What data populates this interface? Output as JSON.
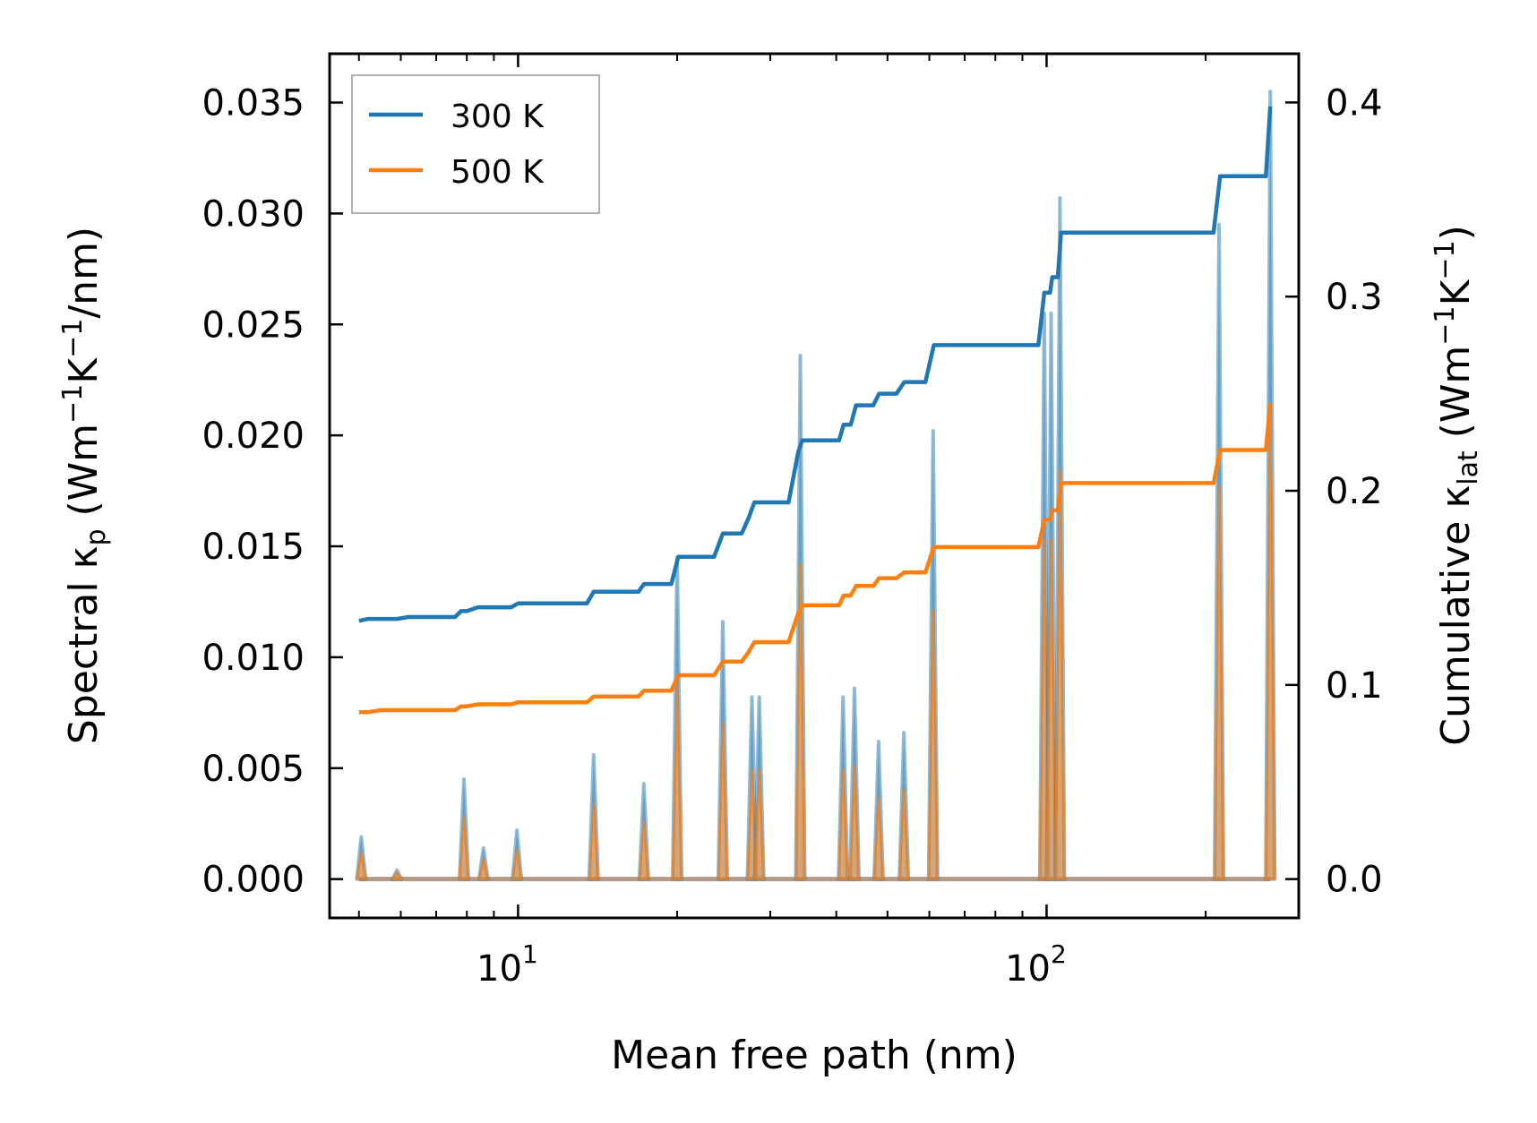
{
  "colors": {
    "series_300K": "#1f77b4",
    "series_500K": "#ff7f0e",
    "spectral_fill": "#9ab1c4"
  },
  "chart_data": {
    "type": "line",
    "xscale": "log",
    "xlim": [
      4.4,
      300
    ],
    "xlabel": "Mean free path (nm)",
    "x_ticks": [
      {
        "value": 10,
        "base": "10",
        "exp": "1"
      },
      {
        "value": 100,
        "base": "10",
        "exp": "2"
      }
    ],
    "left_axis": {
      "label_parts": [
        "Spectral κ",
        "p",
        " (Wm",
        "−1",
        "K",
        "−1",
        "/nm)"
      ],
      "ylim": [
        -0.00175,
        0.0372
      ],
      "ticks": [
        0.0,
        0.005,
        0.01,
        0.015,
        0.02,
        0.025,
        0.03,
        0.035
      ],
      "tick_labels": [
        "0.000",
        "0.005",
        "0.010",
        "0.015",
        "0.020",
        "0.025",
        "0.030",
        "0.035"
      ]
    },
    "right_axis": {
      "label_parts": [
        "Cumulative κ",
        "lat",
        " (Wm",
        "−1",
        "K",
        "−1",
        ")"
      ],
      "ylim": [
        -0.02,
        0.4251
      ],
      "ticks": [
        0.0,
        0.1,
        0.2,
        0.3,
        0.4
      ],
      "tick_labels": [
        "0.0",
        "0.1",
        "0.2",
        "0.3",
        "0.4"
      ]
    },
    "legend": {
      "location": "upper-left",
      "entries": [
        {
          "name": "300 K",
          "color": "#1f77b4"
        },
        {
          "name": "500 K",
          "color": "#ff7f0e"
        }
      ]
    },
    "spectral_peaks": [
      {
        "x": 5.05,
        "k300": 0.0019,
        "k500": 0.0012
      },
      {
        "x": 5.9,
        "k300": 0.0004,
        "k500": 0.0003
      },
      {
        "x": 7.9,
        "k300": 0.0045,
        "k500": 0.0028
      },
      {
        "x": 8.6,
        "k300": 0.0014,
        "k500": 0.0009
      },
      {
        "x": 9.95,
        "k300": 0.0022,
        "k500": 0.0013
      },
      {
        "x": 13.9,
        "k300": 0.0056,
        "k500": 0.0034
      },
      {
        "x": 17.3,
        "k300": 0.0043,
        "k500": 0.0026
      },
      {
        "x": 20.0,
        "k300": 0.0145,
        "k500": 0.0087
      },
      {
        "x": 24.4,
        "k300": 0.0116,
        "k500": 0.007
      },
      {
        "x": 27.7,
        "k300": 0.0082,
        "k500": 0.0049
      },
      {
        "x": 28.6,
        "k300": 0.0082,
        "k500": 0.0049
      },
      {
        "x": 34.2,
        "k300": 0.0236,
        "k500": 0.0142
      },
      {
        "x": 41.2,
        "k300": 0.0082,
        "k500": 0.0049
      },
      {
        "x": 43.3,
        "k300": 0.0086,
        "k500": 0.0051
      },
      {
        "x": 48.1,
        "k300": 0.0062,
        "k500": 0.0037
      },
      {
        "x": 53.7,
        "k300": 0.0066,
        "k500": 0.004
      },
      {
        "x": 61.0,
        "k300": 0.0202,
        "k500": 0.0121
      },
      {
        "x": 99.0,
        "k300": 0.0255,
        "k500": 0.0153
      },
      {
        "x": 102.0,
        "k300": 0.0255,
        "k500": 0.0153
      },
      {
        "x": 106.0,
        "k300": 0.0307,
        "k500": 0.0184
      },
      {
        "x": 212.0,
        "k300": 0.0295,
        "k500": 0.0177
      },
      {
        "x": 265.0,
        "k300": 0.0355,
        "k500": 0.0213
      }
    ],
    "series": [
      {
        "name": "300 K",
        "color": "#1f77b4",
        "x": [
          5.0,
          5.2,
          5.5,
          5.9,
          6.2,
          7.6,
          7.8,
          8.0,
          8.4,
          8.6,
          9.7,
          10.0,
          13.5,
          13.9,
          16.9,
          17.3,
          19.5,
          20.1,
          23.5,
          24.4,
          26.5,
          27.3,
          28.0,
          28.6,
          32.5,
          33.9,
          34.5,
          35.3,
          40.5,
          41.3,
          42.6,
          43.6,
          47.0,
          48.2,
          52.0,
          53.8,
          59.0,
          61.2,
          96.5,
          99.0,
          101.5,
          102.5,
          105.0,
          106.5,
          207.0,
          213.0,
          260.0,
          265.0
        ],
        "y": [
          0.133,
          0.134,
          0.134,
          0.134,
          0.135,
          0.135,
          0.138,
          0.138,
          0.14,
          0.14,
          0.14,
          0.142,
          0.142,
          0.148,
          0.148,
          0.152,
          0.152,
          0.166,
          0.166,
          0.178,
          0.178,
          0.186,
          0.194,
          0.194,
          0.194,
          0.22,
          0.226,
          0.226,
          0.226,
          0.234,
          0.234,
          0.244,
          0.244,
          0.25,
          0.25,
          0.256,
          0.256,
          0.275,
          0.275,
          0.302,
          0.302,
          0.31,
          0.31,
          0.333,
          0.333,
          0.362,
          0.362,
          0.398
        ]
      },
      {
        "name": "500 K",
        "color": "#ff7f0e",
        "x": [
          5.0,
          5.2,
          5.5,
          5.9,
          6.2,
          7.6,
          7.8,
          8.0,
          8.4,
          8.6,
          9.7,
          10.0,
          13.5,
          13.9,
          16.9,
          17.3,
          19.5,
          20.1,
          23.5,
          24.4,
          26.5,
          27.3,
          28.0,
          28.6,
          32.5,
          33.9,
          34.5,
          35.3,
          40.5,
          41.3,
          42.6,
          43.6,
          47.0,
          48.2,
          52.0,
          53.8,
          59.0,
          61.2,
          96.5,
          99.0,
          101.5,
          102.5,
          105.0,
          106.5,
          207.0,
          213.0,
          260.0,
          265.0
        ],
        "y": [
          0.086,
          0.086,
          0.087,
          0.087,
          0.087,
          0.087,
          0.089,
          0.089,
          0.09,
          0.09,
          0.09,
          0.091,
          0.091,
          0.094,
          0.094,
          0.097,
          0.097,
          0.105,
          0.105,
          0.112,
          0.112,
          0.117,
          0.122,
          0.122,
          0.122,
          0.137,
          0.141,
          0.141,
          0.141,
          0.146,
          0.146,
          0.151,
          0.151,
          0.155,
          0.155,
          0.158,
          0.158,
          0.171,
          0.171,
          0.185,
          0.185,
          0.19,
          0.19,
          0.204,
          0.204,
          0.221,
          0.221,
          0.245
        ]
      }
    ]
  }
}
